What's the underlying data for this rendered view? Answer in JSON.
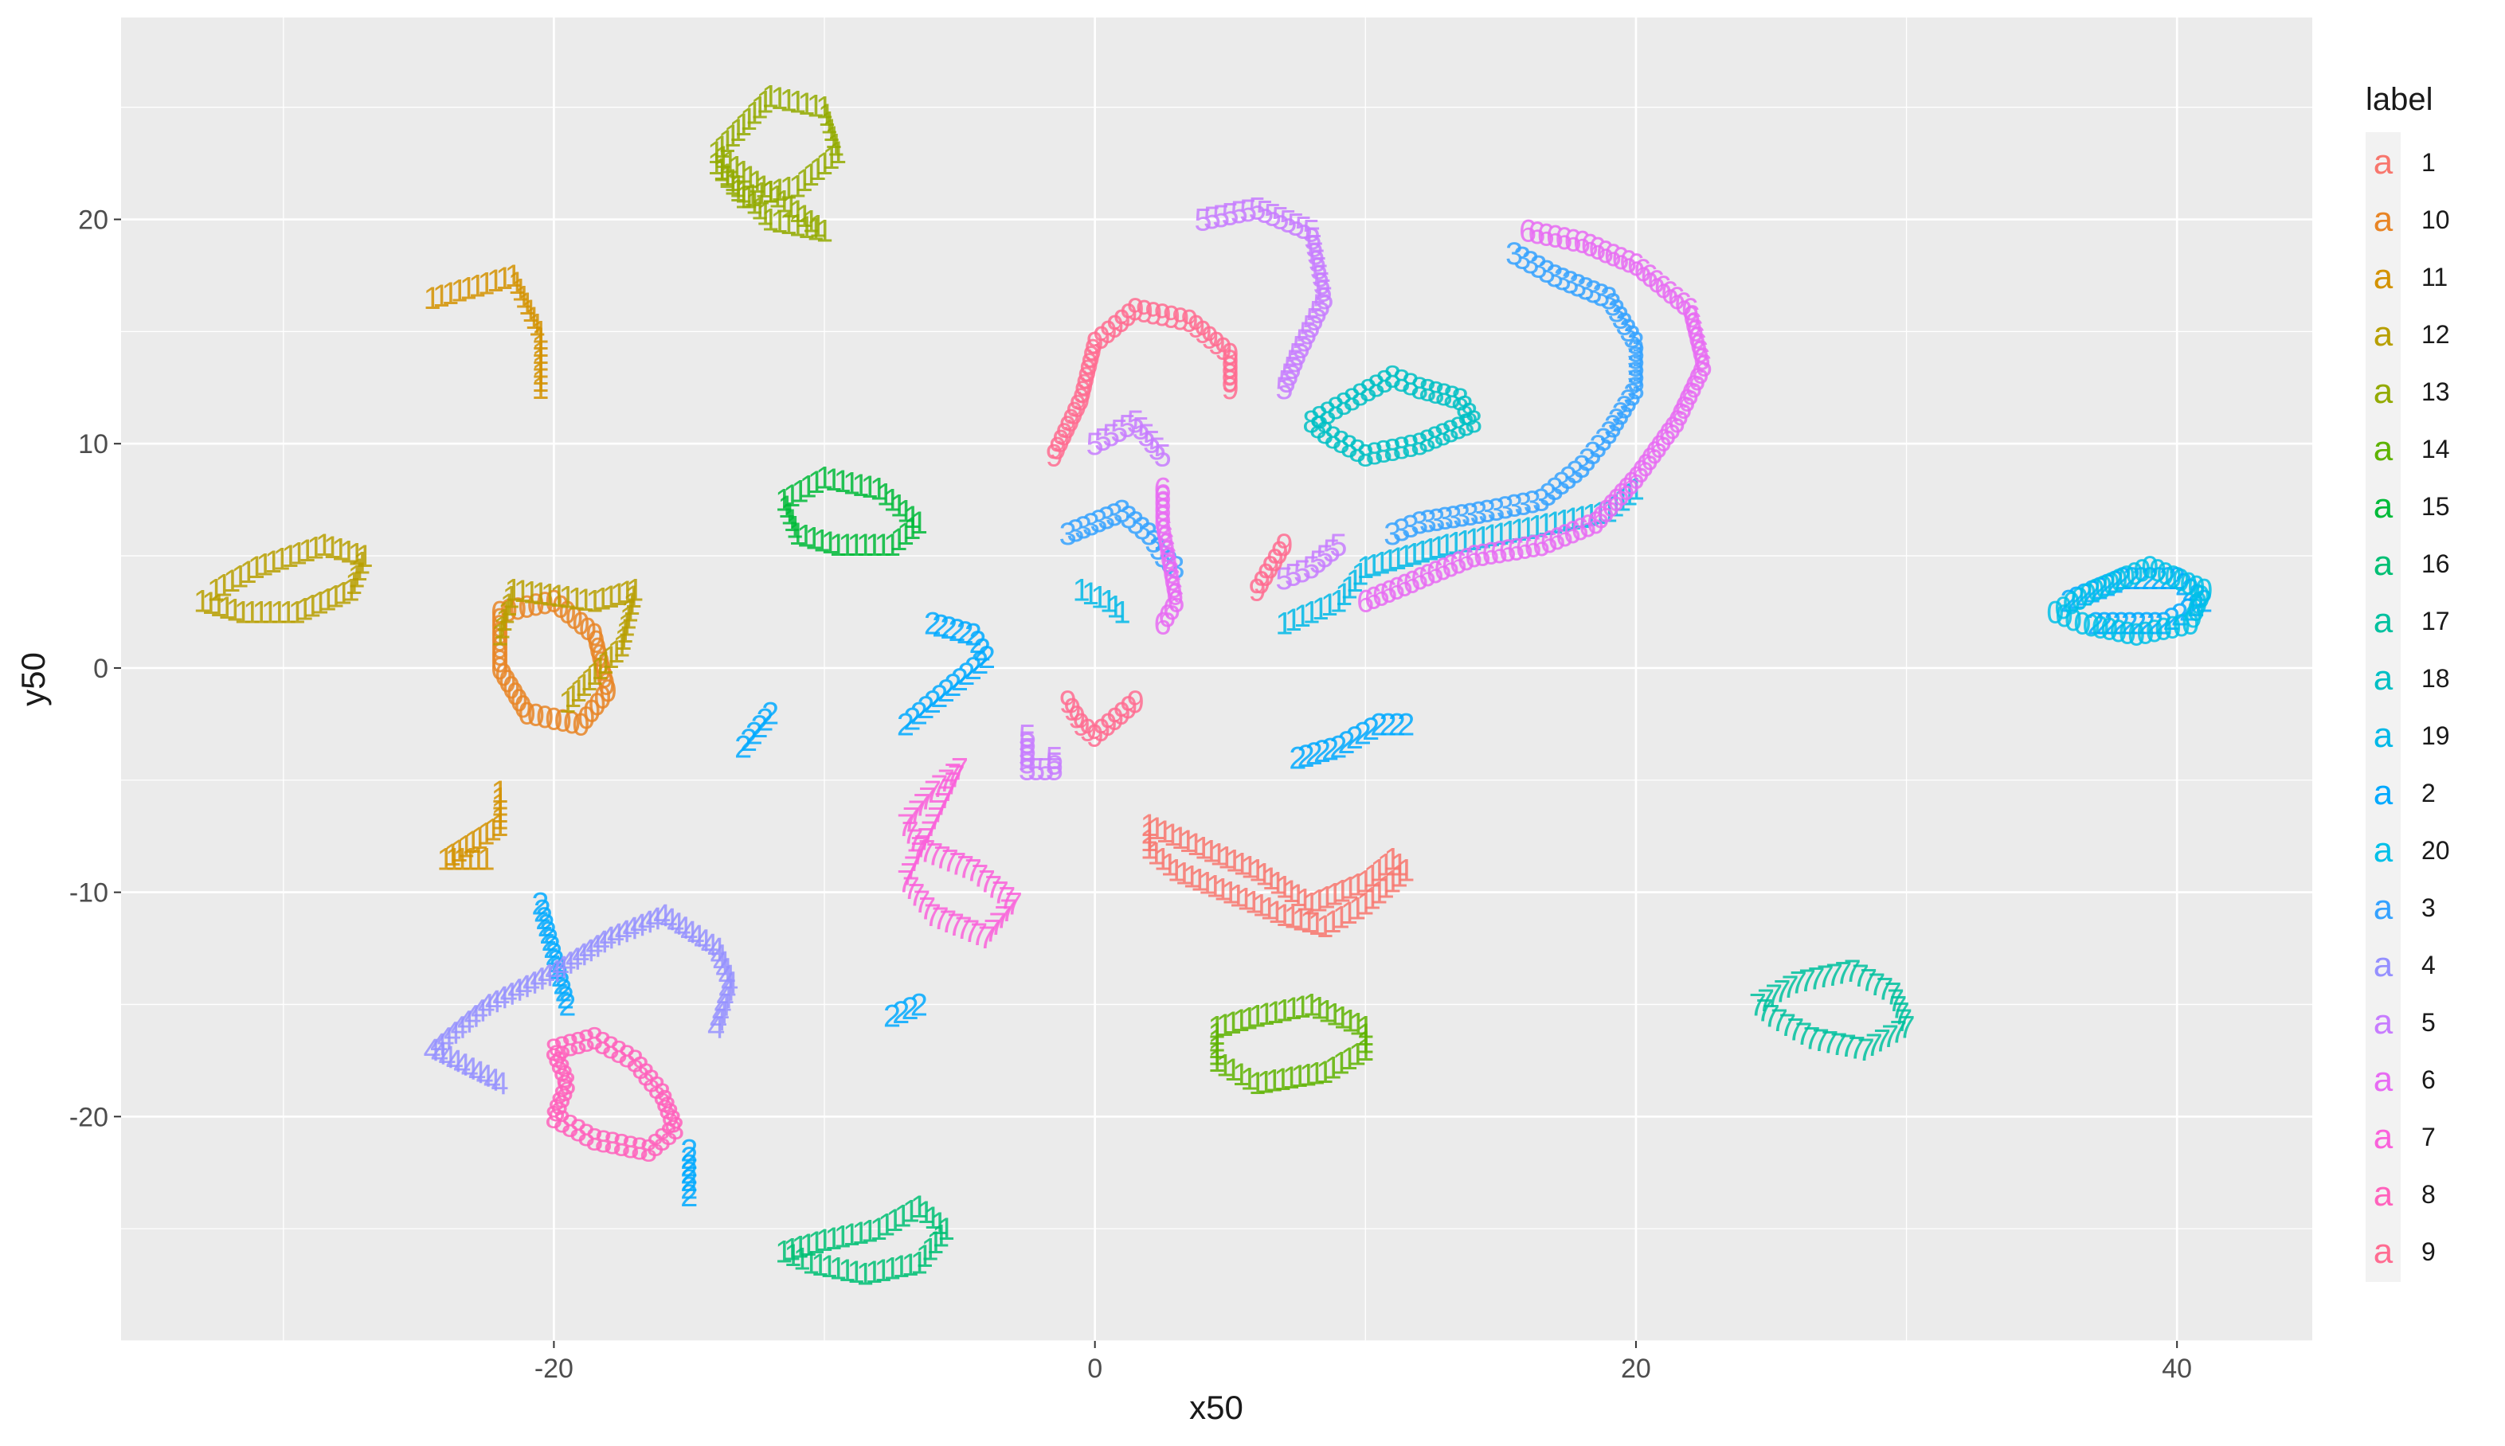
{
  "chart_data": {
    "type": "scatter",
    "title": "",
    "xlabel": "x50",
    "ylabel": "y50",
    "xlim": [
      -36,
      45
    ],
    "ylim": [
      -30,
      29
    ],
    "x_ticks": [
      -20,
      0,
      20,
      40
    ],
    "y_ticks": [
      -20,
      -10,
      0,
      10,
      20
    ],
    "x_tick_labels": [
      "-20",
      "0",
      "20",
      "40"
    ],
    "y_tick_labels": [
      "-20",
      "-10",
      "0",
      "10",
      "20"
    ],
    "grid": true,
    "legend": {
      "title": "label",
      "placement": "right",
      "key_glyph": "a"
    },
    "series": [
      {
        "name": "1",
        "color": "#F8766D",
        "shape": "loop",
        "glyph": "1",
        "points": [
          [
            2,
            -7
          ],
          [
            4,
            -8
          ],
          [
            6,
            -9
          ],
          [
            8,
            -10.5
          ],
          [
            10,
            -9.5
          ],
          [
            11,
            -8.5
          ],
          [
            11.5,
            -9
          ],
          [
            10,
            -10.5
          ],
          [
            8.5,
            -11.5
          ],
          [
            7,
            -11
          ],
          [
            5,
            -10
          ],
          [
            3,
            -9
          ],
          [
            2,
            -8
          ]
        ]
      },
      {
        "name": "10",
        "color": "#E88526",
        "shape": "loop",
        "glyph": "0",
        "points": [
          [
            -22,
            2.5
          ],
          [
            -20,
            3
          ],
          [
            -18.5,
            1.5
          ],
          [
            -18,
            -1
          ],
          [
            -19,
            -2.5
          ],
          [
            -21,
            -2
          ],
          [
            -22,
            0
          ]
        ]
      },
      {
        "name": "11",
        "color": "#D39200",
        "shape": "loop",
        "glyph": "1",
        "points": [
          [
            -22.5,
            -8.5
          ],
          [
            -24,
            -8.5
          ],
          [
            -22,
            -7
          ],
          [
            -22,
            -5.5
          ],
          [
            -24.5,
            16.5
          ],
          [
            -21.5,
            17.5
          ],
          [
            -20.5,
            15
          ],
          [
            -20.5,
            12.5
          ]
        ]
      },
      {
        "name": "12",
        "color": "#B79F00",
        "shape": "loop",
        "glyph": "1",
        "points": [
          [
            -32.5,
            3.5
          ],
          [
            -31,
            4.5
          ],
          [
            -28.5,
            5.5
          ],
          [
            -27,
            5
          ],
          [
            -27.5,
            3.5
          ],
          [
            -29.5,
            2.5
          ],
          [
            -31.5,
            2.5
          ],
          [
            -33,
            3
          ],
          [
            -22,
            1.5
          ],
          [
            -21.5,
            3.5
          ],
          [
            -18.5,
            3
          ],
          [
            -17,
            3.5
          ],
          [
            -17.5,
            1
          ],
          [
            -19.5,
            -1.5
          ]
        ]
      },
      {
        "name": "13",
        "color": "#93AA00",
        "shape": "loop",
        "glyph": "1",
        "points": [
          [
            -14,
            23
          ],
          [
            -12,
            25.5
          ],
          [
            -10,
            25
          ],
          [
            -9.5,
            23
          ],
          [
            -11,
            21.5
          ],
          [
            -13,
            21
          ],
          [
            -14,
            22.5
          ],
          [
            -12,
            20
          ],
          [
            -10,
            19.5
          ]
        ]
      },
      {
        "name": "14",
        "color": "#5EB300",
        "shape": "loop",
        "glyph": "1",
        "points": [
          [
            4.5,
            -16
          ],
          [
            6,
            -15.5
          ],
          [
            8,
            -15
          ],
          [
            10,
            -16
          ],
          [
            10,
            -17
          ],
          [
            8.5,
            -18
          ],
          [
            6,
            -18.5
          ],
          [
            4.5,
            -17.5
          ]
        ]
      },
      {
        "name": "15",
        "color": "#00BA38",
        "shape": "loop",
        "glyph": "1",
        "points": [
          [
            -11.5,
            7.5
          ],
          [
            -10,
            8.5
          ],
          [
            -8,
            8
          ],
          [
            -6.5,
            6.5
          ],
          [
            -7.5,
            5.5
          ],
          [
            -9.5,
            5.5
          ],
          [
            -11,
            6
          ]
        ]
      },
      {
        "name": "16",
        "color": "#00BF74",
        "shape": "loop",
        "glyph": "1",
        "points": [
          [
            -11.5,
            -26
          ],
          [
            -10,
            -25.5
          ],
          [
            -8,
            -25
          ],
          [
            -6.5,
            -24
          ],
          [
            -5.5,
            -25
          ],
          [
            -6.5,
            -26.5
          ],
          [
            -8.5,
            -27
          ],
          [
            -10.5,
            -26.5
          ]
        ]
      },
      {
        "name": "17",
        "color": "#00C19F",
        "shape": "loop",
        "glyph": "7",
        "points": [
          [
            24.5,
            -15
          ],
          [
            26,
            -14
          ],
          [
            28,
            -13.5
          ],
          [
            29.5,
            -14.5
          ],
          [
            30,
            -16
          ],
          [
            28.5,
            -17
          ],
          [
            26.5,
            -16.5
          ],
          [
            25,
            -15.5
          ]
        ]
      },
      {
        "name": "18",
        "color": "#00BFC4",
        "shape": "loop",
        "glyph": "8",
        "points": [
          [
            8,
            11
          ],
          [
            9.5,
            12
          ],
          [
            11,
            13
          ],
          [
            12,
            12.5
          ],
          [
            13.5,
            12
          ],
          [
            14,
            11
          ],
          [
            12,
            10
          ],
          [
            10,
            9.5
          ],
          [
            8.5,
            10.5
          ]
        ]
      },
      {
        "name": "19",
        "color": "#00B8E7",
        "shape": "loop",
        "glyph": "1",
        "points": [
          [
            -0.5,
            3.5
          ],
          [
            0.5,
            3
          ],
          [
            1,
            2.5
          ],
          [
            7,
            2
          ],
          [
            8,
            2.5
          ],
          [
            9,
            3
          ],
          [
            10,
            4.5
          ],
          [
            11.5,
            5
          ],
          [
            13,
            5.5
          ],
          [
            15,
            6
          ],
          [
            17,
            6.5
          ],
          [
            19,
            7
          ],
          [
            20,
            8
          ]
        ]
      },
      {
        "name": "2",
        "color": "#00A9FF",
        "shape": "loop",
        "glyph": "2",
        "points": [
          [
            -7,
            -2.5
          ],
          [
            -6,
            -1.5
          ],
          [
            -5,
            -0.5
          ],
          [
            -4,
            0.5
          ],
          [
            -4.5,
            1.5
          ],
          [
            -6,
            2
          ],
          [
            -13,
            -3.5
          ],
          [
            -12,
            -2
          ],
          [
            7.5,
            -4
          ],
          [
            9,
            -3.5
          ],
          [
            10.5,
            -2.5
          ],
          [
            11.5,
            -2.5
          ],
          [
            -20.5,
            -10.5
          ],
          [
            -19.5,
            -15
          ],
          [
            -15,
            -21.5
          ],
          [
            -15,
            -23.5
          ],
          [
            -7.5,
            -15.5
          ],
          [
            -6.5,
            -15
          ],
          [
            36,
            3
          ],
          [
            38,
            4
          ],
          [
            40,
            4
          ],
          [
            41,
            3
          ],
          [
            39.5,
            2
          ],
          [
            37,
            2
          ]
        ]
      },
      {
        "name": "20",
        "color": "#00C0E8",
        "shape": "loop",
        "glyph": "0",
        "points": [
          [
            35.5,
            2.5
          ],
          [
            37,
            3.5
          ],
          [
            39,
            4.5
          ],
          [
            41,
            3.5
          ],
          [
            40.5,
            2
          ],
          [
            38.5,
            1.5
          ],
          [
            36.5,
            2
          ]
        ]
      },
      {
        "name": "3",
        "color": "#35A2FF",
        "shape": "loop",
        "glyph": "3",
        "points": [
          [
            -1,
            6
          ],
          [
            1,
            7
          ],
          [
            2,
            6
          ],
          [
            2.5,
            5
          ],
          [
            3,
            4.5
          ],
          [
            11,
            6
          ],
          [
            12,
            6.5
          ],
          [
            14.5,
            7
          ],
          [
            16.5,
            7.5
          ],
          [
            18,
            9
          ],
          [
            19,
            10.5
          ],
          [
            20,
            12.5
          ],
          [
            20,
            14.5
          ],
          [
            19,
            16.5
          ],
          [
            17,
            17.5
          ],
          [
            15.5,
            18.5
          ]
        ]
      },
      {
        "name": "4",
        "color": "#9590FF",
        "shape": "loop",
        "glyph": "4",
        "points": [
          [
            -22,
            -18.5
          ],
          [
            -24.5,
            -17
          ],
          [
            -22.5,
            -15
          ],
          [
            -20,
            -13.5
          ],
          [
            -18,
            -12
          ],
          [
            -16,
            -11
          ],
          [
            -14,
            -12.5
          ],
          [
            -13.5,
            -14
          ],
          [
            -14,
            -16
          ]
        ]
      },
      {
        "name": "5",
        "color": "#C77CFF",
        "shape": "loop",
        "glyph": "5",
        "points": [
          [
            0,
            10
          ],
          [
            1.5,
            11
          ],
          [
            2.5,
            9.5
          ],
          [
            -2.5,
            -3
          ],
          [
            -2.5,
            -4.5
          ],
          [
            -1.5,
            -4.5
          ],
          [
            -1.5,
            -4
          ],
          [
            7,
            4
          ],
          [
            8,
            4.5
          ],
          [
            9,
            5.5
          ],
          [
            4,
            20
          ],
          [
            6,
            20.5
          ],
          [
            8,
            19.5
          ],
          [
            8.5,
            16.5
          ],
          [
            7.5,
            14
          ],
          [
            7,
            12.5
          ]
        ]
      },
      {
        "name": "6",
        "color": "#E76BF3",
        "shape": "loop",
        "glyph": "6",
        "points": [
          [
            2.5,
            8
          ],
          [
            2.5,
            6.5
          ],
          [
            3,
            3
          ],
          [
            2.5,
            2
          ],
          [
            10,
            3
          ],
          [
            12,
            4
          ],
          [
            14,
            5
          ],
          [
            16.5,
            5.5
          ],
          [
            18.5,
            6.5
          ],
          [
            20,
            8.5
          ],
          [
            21.5,
            11
          ],
          [
            22.5,
            13.5
          ],
          [
            22,
            16
          ],
          [
            20,
            18
          ],
          [
            18,
            19
          ],
          [
            16,
            19.5
          ]
        ]
      },
      {
        "name": "7",
        "color": "#FA62DB",
        "shape": "loop",
        "glyph": "7",
        "points": [
          [
            -7,
            -7
          ],
          [
            -6,
            -5.5
          ],
          [
            -5,
            -4.5
          ],
          [
            -7,
            -9.5
          ],
          [
            -6,
            -11
          ],
          [
            -4,
            -12
          ],
          [
            -3,
            -10.5
          ],
          [
            -4.5,
            -9
          ],
          [
            -6.5,
            -8
          ]
        ]
      },
      {
        "name": "8",
        "color": "#FF62BC",
        "shape": "loop",
        "glyph": "8",
        "points": [
          [
            -20,
            -17
          ],
          [
            -18.5,
            -16.5
          ],
          [
            -17,
            -17.5
          ],
          [
            -16,
            -19
          ],
          [
            -15.5,
            -20.5
          ],
          [
            -16.5,
            -21.5
          ],
          [
            -18.5,
            -21
          ],
          [
            -20,
            -20
          ],
          [
            -19.5,
            -18.5
          ]
        ]
      },
      {
        "name": "9",
        "color": "#FF6C91",
        "shape": "loop",
        "glyph": "9",
        "points": [
          [
            -1.5,
            9.5
          ],
          [
            -0.5,
            12
          ],
          [
            0,
            14.5
          ],
          [
            1.5,
            16
          ],
          [
            3.5,
            15.5
          ],
          [
            5,
            14
          ],
          [
            5,
            12.5
          ],
          [
            -1,
            -1.5
          ],
          [
            -0.5,
            -2.5
          ],
          [
            0,
            -3
          ],
          [
            1.5,
            -1.5
          ],
          [
            6,
            3.5
          ],
          [
            6.5,
            4.5
          ],
          [
            7,
            5.5
          ]
        ]
      }
    ]
  }
}
